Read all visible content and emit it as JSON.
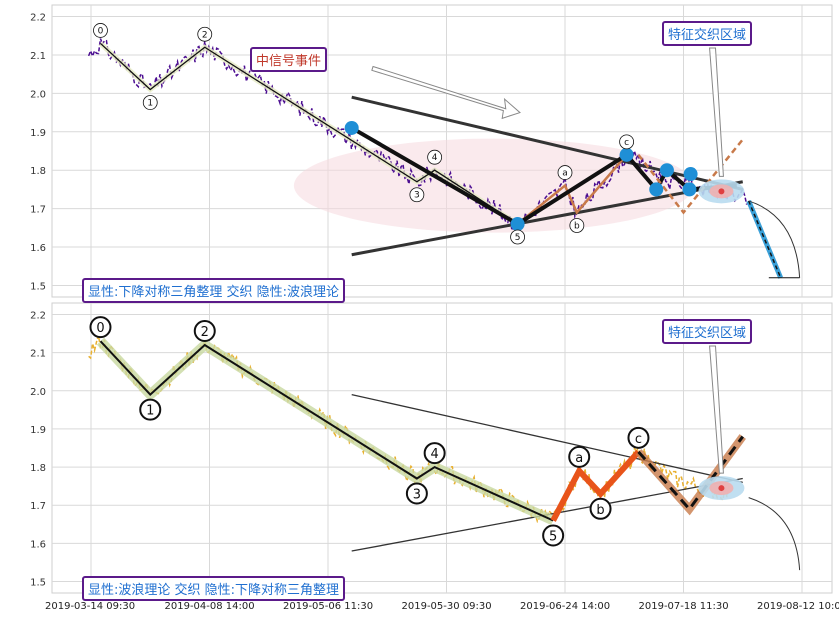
{
  "chart_data": [
    {
      "type": "line",
      "panel": "top",
      "ylim": [
        1.47,
        2.23
      ],
      "yticks": [
        "1.5",
        "1.6",
        "1.7",
        "1.8",
        "1.9",
        "2.0",
        "2.1",
        "2.2"
      ],
      "yticks_values": [
        1.5,
        1.6,
        1.7,
        1.8,
        1.9,
        2.0,
        2.1,
        2.2
      ],
      "grid": true,
      "price_color": "#4b0d91",
      "wave_points": [
        {
          "label": "0",
          "x": 0.08,
          "y": 2.13
        },
        {
          "label": "1",
          "x": 0.5,
          "y": 2.01
        },
        {
          "label": "2",
          "x": 0.96,
          "y": 2.12
        },
        {
          "label": "3",
          "x": 2.75,
          "y": 1.77
        },
        {
          "label": "4",
          "x": 2.9,
          "y": 1.8
        },
        {
          "label": "5",
          "x": 3.6,
          "y": 1.66
        },
        {
          "label": "a",
          "x": 4.0,
          "y": 1.76
        },
        {
          "label": "b",
          "x": 4.1,
          "y": 1.69
        },
        {
          "label": "c",
          "x": 4.52,
          "y": 1.84
        }
      ],
      "triangle_upper": [
        [
          2.2,
          1.99
        ],
        [
          5.5,
          1.75
        ]
      ],
      "triangle_lower": [
        [
          2.2,
          1.58
        ],
        [
          5.5,
          1.77
        ]
      ],
      "blue_points": [
        [
          2.2,
          1.91
        ],
        [
          3.6,
          1.66
        ],
        [
          4.52,
          1.84
        ],
        [
          4.77,
          1.75
        ],
        [
          4.86,
          1.8
        ],
        [
          5.05,
          1.75
        ],
        [
          5.06,
          1.79
        ]
      ],
      "forecast_segment": [
        [
          5.55,
          1.72
        ],
        [
          5.82,
          1.52
        ]
      ],
      "annotations": {
        "signal_event": "中信号事件",
        "feature_zone": "特征交织区域",
        "caption": "显性:下降对称三角整理 交织 隐性:波浪理论"
      }
    },
    {
      "type": "line",
      "panel": "bottom",
      "ylim": [
        1.47,
        2.23
      ],
      "yticks": [
        "1.5",
        "1.6",
        "1.7",
        "1.8",
        "1.9",
        "2.0",
        "2.1",
        "2.2"
      ],
      "yticks_values": [
        1.5,
        1.6,
        1.7,
        1.8,
        1.9,
        2.0,
        2.1,
        2.2
      ],
      "grid": true,
      "price_color": "#e8b030",
      "wave_points": [
        {
          "label": "0",
          "x": 0.08,
          "y": 2.13
        },
        {
          "label": "1",
          "x": 0.5,
          "y": 1.99
        },
        {
          "label": "2",
          "x": 0.96,
          "y": 2.12
        },
        {
          "label": "3",
          "x": 2.75,
          "y": 1.77
        },
        {
          "label": "4",
          "x": 2.9,
          "y": 1.8
        },
        {
          "label": "5",
          "x": 3.9,
          "y": 1.66
        },
        {
          "label": "a",
          "x": 4.12,
          "y": 1.79
        },
        {
          "label": "b",
          "x": 4.3,
          "y": 1.73
        },
        {
          "label": "c",
          "x": 4.62,
          "y": 1.84
        }
      ],
      "triangle_upper": [
        [
          2.2,
          1.99
        ],
        [
          5.5,
          1.76
        ]
      ],
      "triangle_lower": [
        [
          2.2,
          1.58
        ],
        [
          5.5,
          1.77
        ]
      ],
      "annotations": {
        "feature_zone": "特征交织区域",
        "caption": "显性:波浪理论 交织 隐性:下降对称三角整理"
      }
    }
  ],
  "x_axis": {
    "ticks": [
      "2019-03-14 09:30",
      "2019-04-08 14:00",
      "2019-05-06 11:30",
      "2019-05-30 09:30",
      "2019-06-24 14:00",
      "2019-07-18 11:30",
      "2019-08-12 10:00"
    ],
    "tick_values": [
      0,
      1,
      2,
      3,
      4,
      5,
      6
    ]
  },
  "colors": {
    "wave_line": "#111111",
    "wave_band": "#c8d8a0",
    "triangle": "#333333",
    "highlight_blue": "#1f8fd6",
    "abc_orange": "#e8541a",
    "abc_brown": "#c87a4a",
    "zone_ellipse": "#f6d9de",
    "forecast": "#3aa0d8"
  }
}
